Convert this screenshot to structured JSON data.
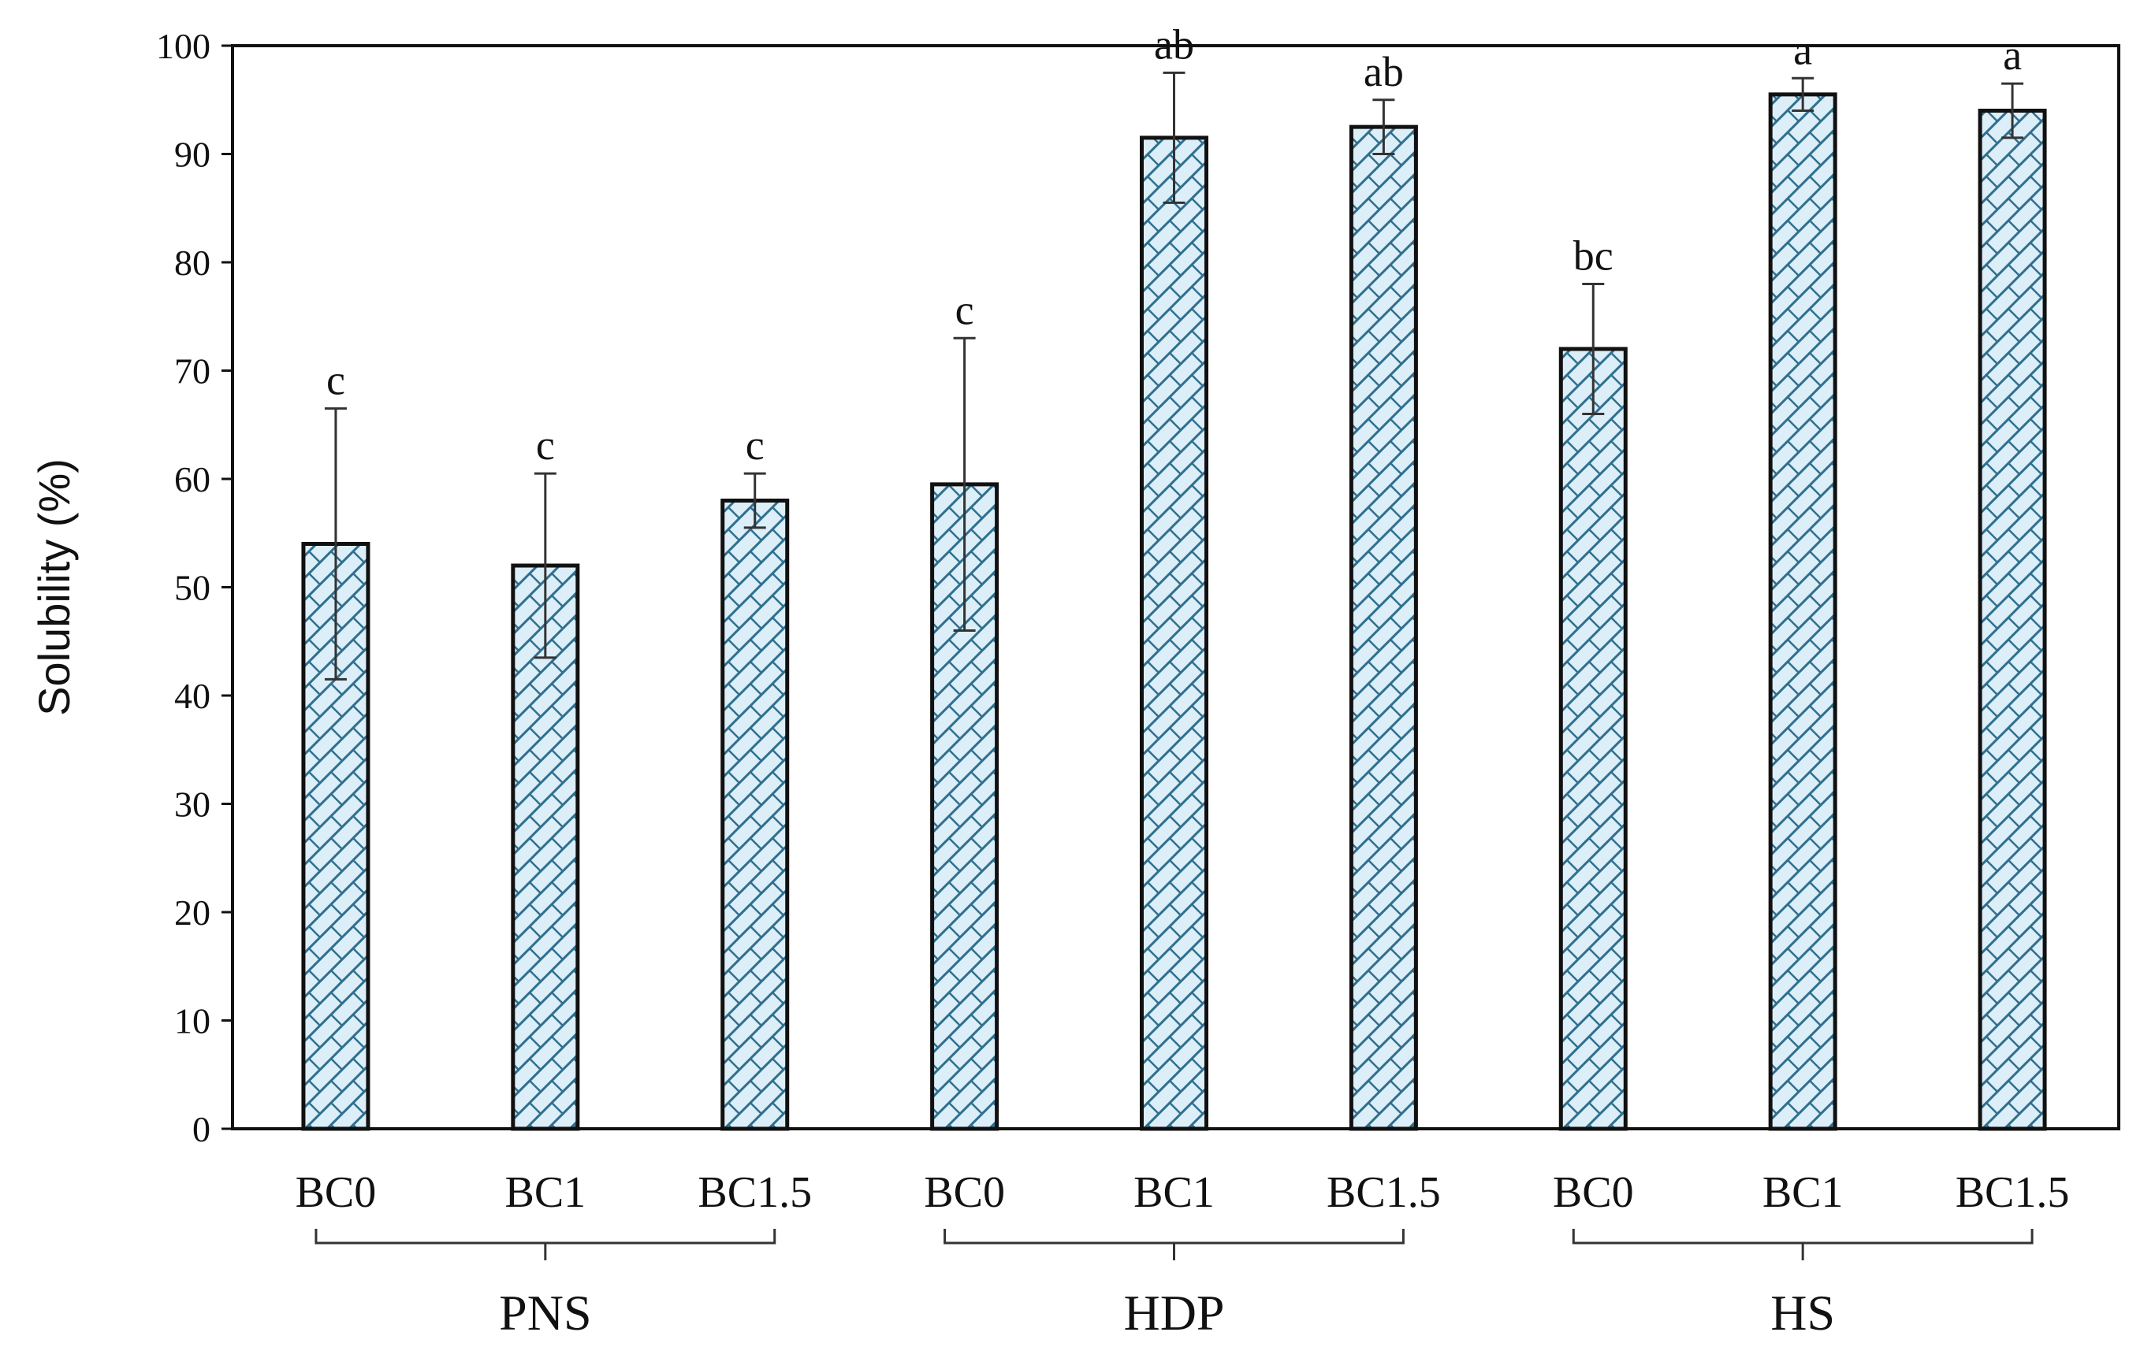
{
  "chart_data": {
    "type": "bar",
    "ylabel": "Solubility (%)",
    "ylim": [
      0,
      100
    ],
    "yticks": [
      "0",
      "10",
      "20",
      "30",
      "40",
      "50",
      "60",
      "70",
      "80",
      "90",
      "100"
    ],
    "groups": [
      {
        "name": "PNS",
        "categories": [
          "BC0",
          "BC1",
          "BC1.5"
        ]
      },
      {
        "name": "HDP",
        "categories": [
          "BC0",
          "BC1",
          "BC1.5"
        ]
      },
      {
        "name": "HS",
        "categories": [
          "BC0",
          "BC1",
          "BC1.5"
        ]
      }
    ],
    "categories": [
      "BC0",
      "BC1",
      "BC1.5",
      "BC0",
      "BC1",
      "BC1.5",
      "BC0",
      "BC1",
      "BC1.5"
    ],
    "values": [
      54,
      52,
      58,
      59.5,
      91.5,
      92.5,
      72,
      95.5,
      94
    ],
    "errors": [
      12.5,
      8.5,
      2.5,
      13.5,
      6,
      2.5,
      6,
      1.5,
      2.5
    ],
    "significance": [
      "c",
      "c",
      "c",
      "c",
      "ab",
      "ab",
      "bc",
      "a",
      "a"
    ],
    "colors": {
      "bar_fill": "#dceef7",
      "hatch": "#2f6f8f",
      "outline": "#111111"
    }
  }
}
